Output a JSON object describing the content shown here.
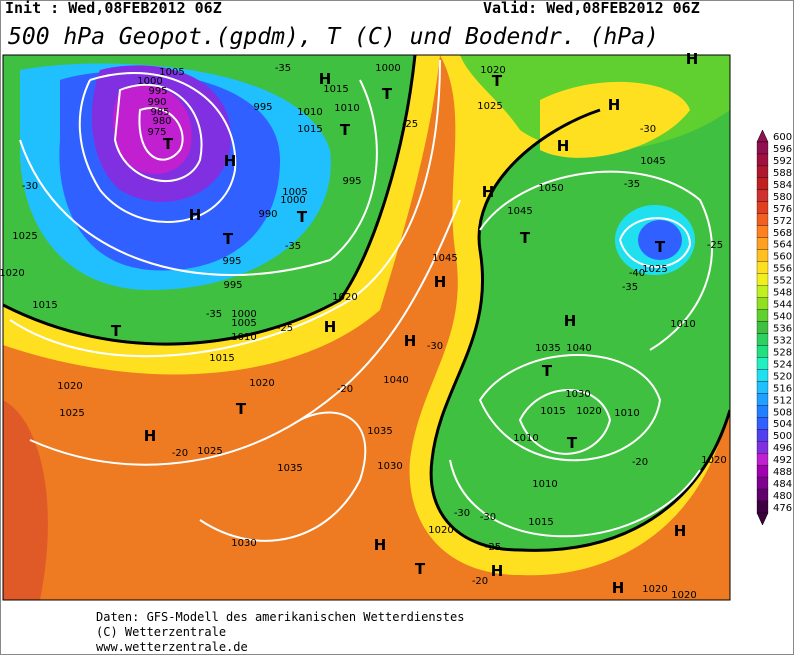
{
  "header": {
    "init": "Init : Wed,08FEB2012 06Z",
    "valid": "Valid: Wed,08FEB2012 06Z",
    "title": "500 hPa Geopot.(gpdm), T (C) und Bodendr. (hPa)"
  },
  "footer": {
    "source": "Daten: GFS-Modell des amerikanischen Wetterdienstes",
    "copyright": "(C) Wetterzentrale",
    "url": "www.wetterzentrale.de"
  },
  "legend": {
    "labels": [
      600,
      596,
      592,
      588,
      584,
      580,
      576,
      572,
      568,
      564,
      560,
      556,
      552,
      548,
      544,
      540,
      536,
      532,
      528,
      524,
      520,
      516,
      512,
      508,
      504,
      500,
      496,
      492,
      488,
      484,
      480,
      476
    ],
    "colors": [
      "#901050",
      "#a01040",
      "#b01830",
      "#c02020",
      "#d03030",
      "#e04020",
      "#f06020",
      "#ff8020",
      "#ffa020",
      "#ffc020",
      "#ffe020",
      "#f0f020",
      "#c0f020",
      "#90e020",
      "#60d030",
      "#40c040",
      "#30d060",
      "#20e080",
      "#20f0c0",
      "#20e0f0",
      "#20c0ff",
      "#20a0ff",
      "#2080ff",
      "#3060ff",
      "#5040f0",
      "#8030e0",
      "#c020d0",
      "#a000b0",
      "#800090",
      "#60006a",
      "#3d0040"
    ]
  },
  "map": {
    "labels": [
      "1005",
      "1000",
      "995",
      "990",
      "985",
      "980",
      "975",
      "T",
      "H",
      "H",
      "T",
      "995",
      "995",
      "990",
      "1005",
      "1000",
      "T",
      "995",
      "995",
      "1010",
      "1015",
      "T",
      "H",
      "1015",
      "1010",
      "T",
      "1000",
      "-35",
      "1025",
      "1020",
      "1015",
      "T",
      "1000",
      "1005",
      "1010",
      "1015",
      "H",
      "1020",
      "1020",
      "T",
      "H",
      "1025",
      "1020",
      "1025",
      "1035",
      "1030",
      "1035",
      "1030",
      "1040",
      "H",
      "H",
      "1045",
      "H",
      "T",
      "1045",
      "1050",
      "H",
      "H",
      "1045",
      "T",
      "1025",
      "-25",
      "1010",
      "H",
      "1040",
      "1035",
      "T",
      "1030",
      "1020",
      "1015",
      "1010",
      "T",
      "1010",
      "1010",
      "1020",
      "1015",
      "H",
      "T",
      "H",
      "H",
      "1020",
      "1020",
      "1020",
      "H",
      "H",
      "T",
      "1020",
      "1025",
      "-20",
      "-20",
      "-25",
      "-30",
      "-30",
      "-30",
      "-25",
      "-20",
      "-20",
      "-35",
      "-40",
      "-35",
      "-30",
      "-35",
      "-35",
      "-30",
      "-25"
    ]
  }
}
